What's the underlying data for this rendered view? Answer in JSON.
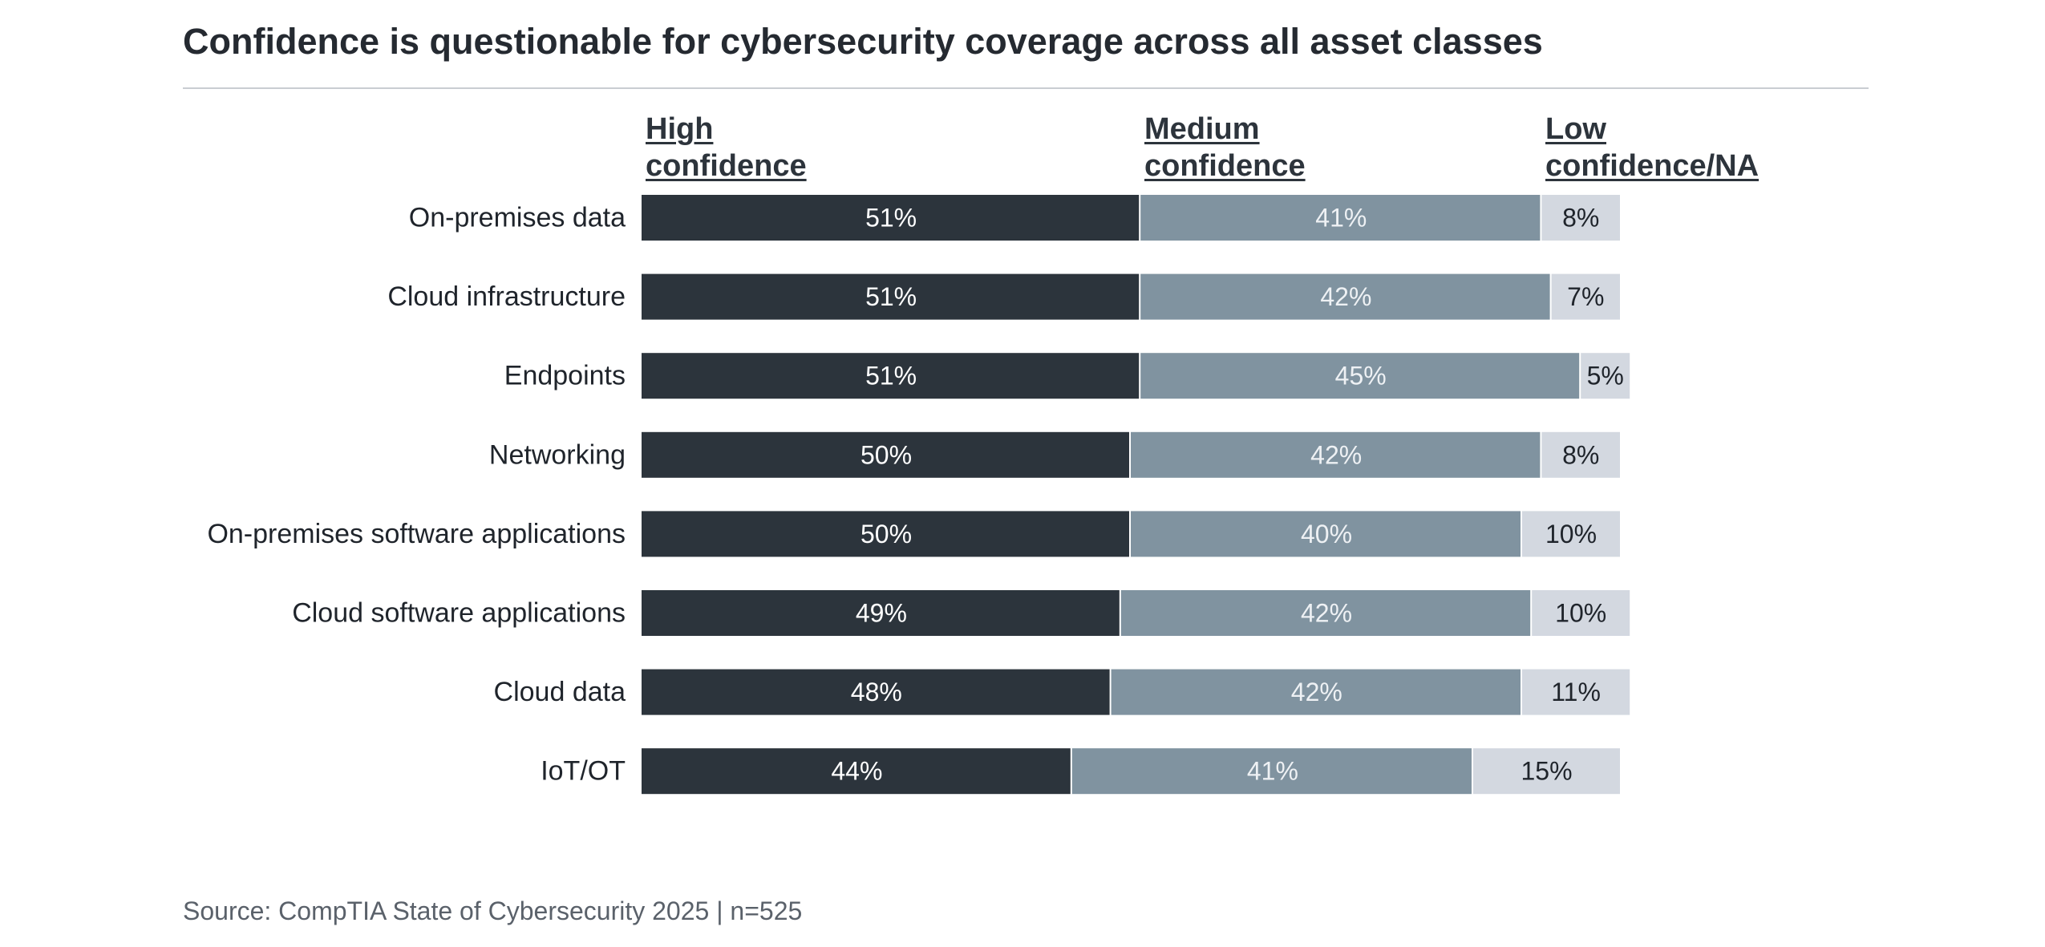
{
  "title": "Confidence is questionable for cybersecurity coverage across all asset classes",
  "source": "Source: CompTIA State of Cybersecurity 2025 | n=525",
  "legend": [
    {
      "line1": "High",
      "line2": "confidence"
    },
    {
      "line1": "Medium",
      "line2": "confidence"
    },
    {
      "line1": "Low",
      "line2": "confidence/NA"
    }
  ],
  "colors": {
    "high": "#2c343c",
    "medium": "#8093a0",
    "low": "#d3d8e0",
    "high_text": "#ffffff",
    "medium_text": "#eef1f4",
    "low_text": "#1f242b"
  },
  "chart_data": {
    "type": "bar",
    "orientation": "horizontal-stacked-100",
    "title": "Confidence is questionable for cybersecurity coverage across all asset classes",
    "categories": [
      "On-premises data",
      "Cloud infrastructure",
      "Endpoints",
      "Networking",
      "On-premises software applications",
      "Cloud software applications",
      "Cloud data",
      "IoT/OT"
    ],
    "series": [
      {
        "name": "High confidence",
        "values": [
          51,
          51,
          51,
          50,
          50,
          49,
          48,
          44
        ]
      },
      {
        "name": "Medium confidence",
        "values": [
          41,
          42,
          45,
          42,
          40,
          42,
          42,
          41
        ]
      },
      {
        "name": "Low confidence/NA",
        "values": [
          8,
          7,
          5,
          8,
          10,
          10,
          11,
          15
        ]
      }
    ],
    "value_suffix": "%",
    "xlim": [
      0,
      100
    ],
    "grid": false,
    "legend_position": "top"
  }
}
